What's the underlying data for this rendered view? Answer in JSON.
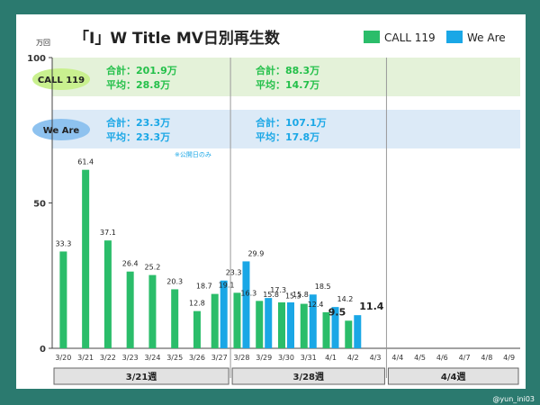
{
  "title": "「I」W Title MV日別再生数",
  "credit": "@yun_ini03",
  "legend": [
    {
      "name": "CALL 119",
      "color": "#2bbd6a"
    },
    {
      "name": "We Are",
      "color": "#1aa7e6"
    }
  ],
  "colors": {
    "call": "#2bbd6a",
    "weare": "#1aa7e6",
    "call_band": "#e4f2d9",
    "weare_band": "#dceaf7",
    "call_pill": "#c9f08f",
    "weare_pill": "#8ec2ef",
    "call_text": "#24c04a",
    "weare_text": "#1aa7e6",
    "week_box": "#e2e2e2"
  },
  "summary": {
    "call": {
      "label": "CALL 119",
      "week1": {
        "total": "合計：201.9万",
        "avg": "平均：28.8万"
      },
      "week2": {
        "total": "合計：88.3万",
        "avg": "平均：14.7万"
      }
    },
    "weare": {
      "label": "We Are",
      "week1": {
        "total": "合計：23.3万",
        "avg": "平均：23.3万"
      },
      "week2": {
        "total": "合計：107.1万",
        "avg": "平均：17.8万"
      },
      "note": "※公開日のみ"
    }
  },
  "chart_data": {
    "type": "bar",
    "title": "「I」W Title MV日別再生数",
    "ylabel": "万回",
    "ylim": [
      0,
      100
    ],
    "yticks": [
      0,
      50,
      100
    ],
    "categories": [
      "3/20",
      "3/21",
      "3/22",
      "3/23",
      "3/24",
      "3/25",
      "3/26",
      "3/27",
      "3/28",
      "3/29",
      "3/30",
      "3/31",
      "4/1",
      "4/2",
      "4/3",
      "4/4",
      "4/5",
      "4/6",
      "4/7",
      "4/8",
      "4/9"
    ],
    "series": [
      {
        "name": "CALL 119",
        "values": [
          33.3,
          61.4,
          37.1,
          26.4,
          25.2,
          20.3,
          12.8,
          18.7,
          19.1,
          16.3,
          15.8,
          15.3,
          12.4,
          9.5,
          null,
          null,
          null,
          null,
          null,
          null,
          null
        ]
      },
      {
        "name": "We Are",
        "values": [
          null,
          null,
          null,
          null,
          null,
          null,
          null,
          23.3,
          29.9,
          17.3,
          15.8,
          18.5,
          14.2,
          11.4,
          null,
          null,
          null,
          null,
          null,
          null,
          null
        ]
      }
    ],
    "weeks": [
      {
        "label": "3/21週",
        "from": "3/20",
        "to": "3/27"
      },
      {
        "label": "3/28週",
        "from": "3/28",
        "to": "4/3"
      },
      {
        "label": "4/4週",
        "from": "4/4",
        "to": "4/9"
      }
    ],
    "highlighted_labels": [
      "9.5",
      "11.4"
    ],
    "grid": false,
    "legend_position": "top-right"
  }
}
